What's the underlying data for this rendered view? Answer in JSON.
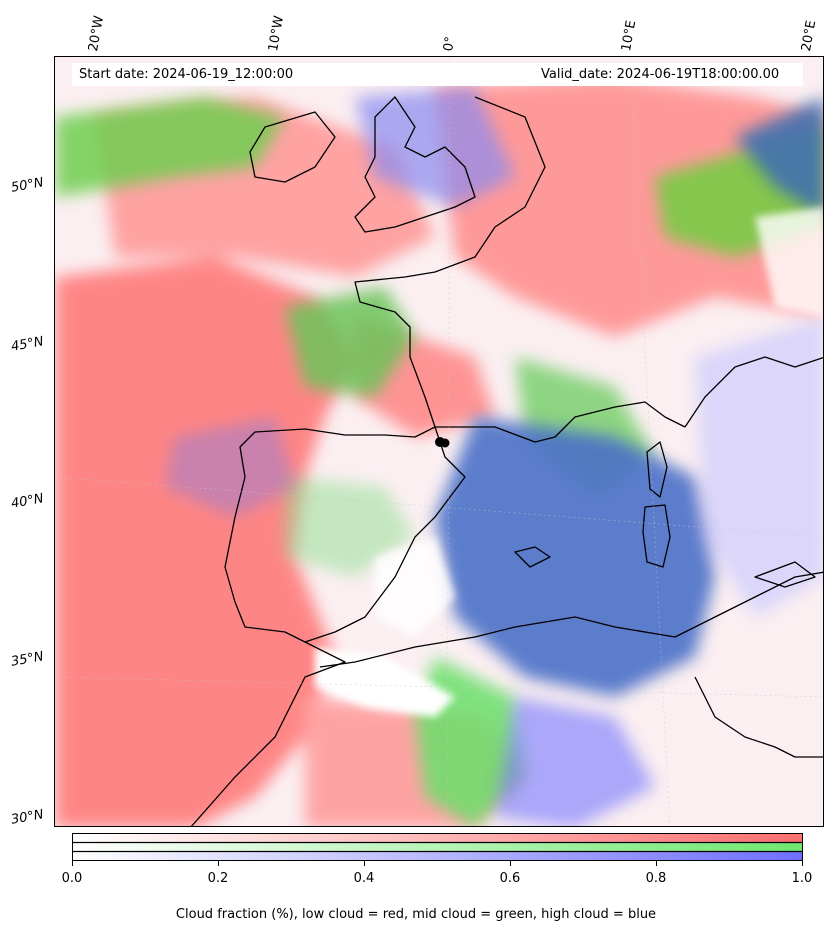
{
  "header": {
    "start_label": "Start date: 2024-06-19_12:00:00",
    "valid_label": "Valid_date: 2024-06-19T18:00:00.00"
  },
  "axes": {
    "lon_labels": [
      "20°W",
      "10°W",
      "0°",
      "10°E",
      "20°E"
    ],
    "lat_labels": [
      "50°N",
      "45°N",
      "40°N",
      "35°N",
      "30°N"
    ]
  },
  "colorbar": {
    "ticks": [
      "0.0",
      "0.2",
      "0.4",
      "0.6",
      "0.8",
      "1.0"
    ],
    "caption": "Cloud fraction (%), low cloud = red, mid cloud = green, high cloud = blue",
    "colors": {
      "low": "#ff6f6f",
      "mid": "#6fe86f",
      "high": "#6f6fff"
    }
  },
  "layers": {
    "low_cloud_color": "#ff7f7f",
    "mid_cloud_color": "#70dd60",
    "high_cloud_color": "#4b6fc8",
    "coastline_color": "#000000"
  },
  "marker": {
    "name": "point-marker"
  }
}
